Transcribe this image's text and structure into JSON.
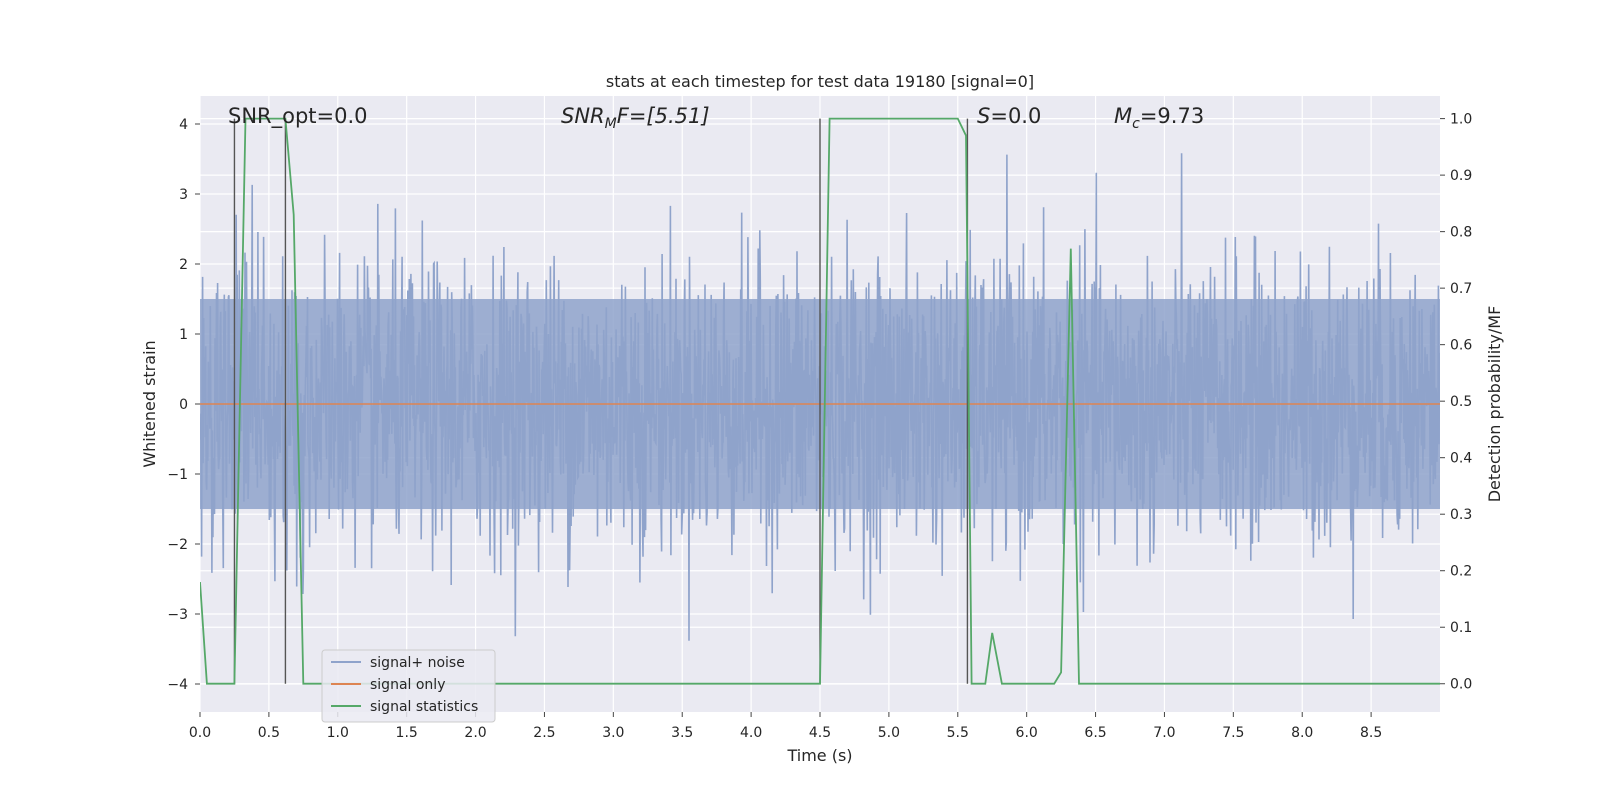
{
  "chart_data": {
    "type": "line",
    "title": "stats at each timestep for test data 19180 [signal=0]",
    "xlabel": "Time (s)",
    "ylabel_left": "Whitened strain",
    "ylabel_right": "Detection probability/MF",
    "xlim": [
      0.0,
      9.0
    ],
    "ylim_left": [
      -4.4,
      4.4
    ],
    "ylim_right": [
      -0.05,
      1.04
    ],
    "xticks": [
      "0.0",
      "0.5",
      "1.0",
      "1.5",
      "2.0",
      "2.5",
      "3.0",
      "3.5",
      "4.0",
      "4.5",
      "5.0",
      "5.5",
      "6.0",
      "6.5",
      "7.0",
      "7.5",
      "8.0",
      "8.5"
    ],
    "yticks_left": [
      "−4",
      "−3",
      "−2",
      "−1",
      "0",
      "1",
      "2",
      "3",
      "4"
    ],
    "yticks_right": [
      "0.0",
      "0.1",
      "0.2",
      "0.3",
      "0.4",
      "0.5",
      "0.6",
      "0.7",
      "0.8",
      "0.9",
      "1.0"
    ],
    "grid": true,
    "legend_position": "lower-left",
    "annotations": {
      "snr_opt": "SNR_opt=0.0",
      "snr_mf_base": "SNR",
      "snr_mf_sub": "M",
      "snr_mf_tail": "F=[5.51]",
      "s_base": "S",
      "s_tail": "=0.0",
      "mc_base": "M",
      "mc_sub": "c",
      "mc_tail": "=9.73"
    },
    "vertical_markers": [
      0.25,
      0.62,
      4.5,
      5.57
    ],
    "series": [
      {
        "name": "signal+ noise",
        "color": "#8fa3cb",
        "axis": "left",
        "description_values": "noisy whitened strain, mostly within ±2.5, peaks up to ~4.0 and down to ~−4.0"
      },
      {
        "name": "signal only",
        "color": "#dd8452",
        "axis": "left",
        "x": [
          0.0,
          9.0
        ],
        "y": [
          0.0,
          0.0
        ]
      },
      {
        "name": "signal statistics",
        "color": "#55a868",
        "axis": "right",
        "x": [
          0.0,
          0.05,
          0.25,
          0.33,
          0.62,
          0.68,
          0.75,
          0.8,
          1.0,
          2.0,
          3.0,
          4.0,
          4.45,
          4.5,
          4.57,
          5.0,
          5.5,
          5.56,
          5.6,
          5.65,
          5.7,
          5.75,
          5.82,
          5.9,
          6.0,
          6.2,
          6.25,
          6.32,
          6.38,
          6.45,
          7.0,
          8.0,
          9.0
        ],
        "y": [
          0.18,
          0.0,
          0.0,
          1.0,
          1.0,
          0.83,
          0.0,
          0.0,
          0.0,
          0.0,
          0.0,
          0.0,
          0.0,
          0.0,
          1.0,
          1.0,
          1.0,
          0.97,
          0.0,
          0.0,
          0.0,
          0.09,
          0.0,
          0.0,
          0.0,
          0.0,
          0.02,
          0.77,
          0.0,
          0.0,
          0.0,
          0.0,
          0.0
        ]
      }
    ]
  },
  "legend": {
    "items": [
      {
        "label": "signal+ noise",
        "color": "#8fa3cb"
      },
      {
        "label": "signal only",
        "color": "#dd8452"
      },
      {
        "label": "signal statistics",
        "color": "#55a868"
      }
    ]
  },
  "colors": {
    "plot_background": "#eaeaf2",
    "grid": "#ffffff",
    "marker_line": "#555555"
  }
}
